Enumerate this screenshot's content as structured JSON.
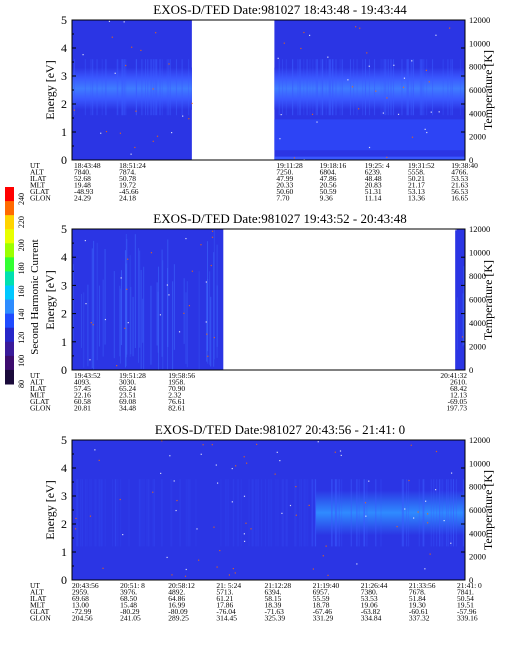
{
  "colors": {
    "background": "#ffffff",
    "spectrogram_base": "#2b35e4",
    "spectrogram_band": "#3f60ff",
    "spectrogram_bright": "#2f8bff",
    "spectrogram_low": "#2c3cf0",
    "noise_white": "#ffffff",
    "noise_orange": "#ff6a00"
  },
  "colorbar": {
    "label": "Second Harmonic Current",
    "ticks": [
      "240",
      "220",
      "200",
      "180",
      "160",
      "140",
      "120",
      "100",
      "80"
    ],
    "colors": [
      "#ff0000",
      "#ff6a00",
      "#ffd400",
      "#e8ff00",
      "#9cff00",
      "#33ff33",
      "#00e0b0",
      "#00c8ff",
      "#2d8cff",
      "#1f4bff",
      "#2626c8",
      "#3a1a9a",
      "#3d0c6e",
      "#1a0a3a"
    ]
  },
  "panels": [
    {
      "title": "EXOS-D/TED   Date:981027   18:43:48 - 19:43:44",
      "ylabel": "Energy [eV]",
      "y2label": "Temperature [K]",
      "yticks": [
        "0",
        "1",
        "2",
        "3",
        "4",
        "5"
      ],
      "y2ticks": [
        "0",
        "2000",
        "4000",
        "6000",
        "8000",
        "10000",
        "12000"
      ],
      "data_segments": [
        [
          0.0,
          0.305
        ],
        [
          0.515,
          1.0
        ]
      ],
      "table_rows": [
        {
          "label": "UT",
          "values": [
            "18:43:48",
            "18:51:24",
            "19:11:28",
            "19:18:16",
            "19:25: 4",
            "19:31:52",
            "19:38:40"
          ]
        },
        {
          "label": "ALT",
          "values": [
            "7840.",
            "7874.",
            "7250.",
            "6804.",
            "6239.",
            "5558.",
            "4766."
          ]
        },
        {
          "label": "ILAT",
          "values": [
            "52.68",
            "50.78",
            "47.99",
            "47.86",
            "48.48",
            "50.21",
            "53.53"
          ]
        },
        {
          "label": "MLT",
          "values": [
            "19.48",
            "19.72",
            "20.33",
            "20.56",
            "20.83",
            "21.17",
            "21.63"
          ]
        },
        {
          "label": "GLAT",
          "values": [
            "-48.93",
            "-45.66",
            "50.60",
            "50.59",
            "51.31",
            "53.13",
            "56.53"
          ]
        },
        {
          "label": "GLON",
          "values": [
            "24.29",
            "24.18",
            "7.70",
            "9.36",
            "11.14",
            "13.36",
            "16.65"
          ]
        }
      ]
    },
    {
      "title": "EXOS-D/TED   Date:981027   19:43:52 - 20:43:48",
      "ylabel": "Energy [eV]",
      "y2label": "Temperature [K]",
      "yticks": [
        "0",
        "1",
        "2",
        "3",
        "4",
        "5"
      ],
      "y2ticks": [
        "0",
        "2000",
        "4000",
        "6000",
        "8000",
        "10000",
        "12000"
      ],
      "data_segments": [
        [
          0.0,
          0.385
        ],
        [
          0.975,
          1.0
        ]
      ],
      "table_rows": [
        {
          "label": "UT",
          "values": [
            "19:43:52",
            "19:51:28",
            "19:58:56",
            "20:41:32"
          ]
        },
        {
          "label": "ALT",
          "values": [
            "4093.",
            "3030.",
            "1958.",
            "2610."
          ]
        },
        {
          "label": "ILAT",
          "values": [
            "57.45",
            "65.24",
            "70.90",
            "68.42"
          ]
        },
        {
          "label": "MLT",
          "values": [
            "22.16",
            "23.51",
            "2.32",
            "12.13"
          ]
        },
        {
          "label": "GLAT",
          "values": [
            "60.58",
            "69.08",
            "76.61",
            "-69.05"
          ]
        },
        {
          "label": "GLON",
          "values": [
            "20.81",
            "34.48",
            "82.61",
            "197.73"
          ]
        }
      ]
    },
    {
      "title": "EXOS-D/TED   Date:981027   20:43:56 - 21:41: 0",
      "ylabel": "Energy [eV]",
      "y2label": "Temperature [K]",
      "yticks": [
        "0",
        "1",
        "2",
        "3",
        "4",
        "5"
      ],
      "y2ticks": [
        "0",
        "2000",
        "4000",
        "6000",
        "8000",
        "10000",
        "12000"
      ],
      "data_segments": [
        [
          0.0,
          1.0
        ]
      ],
      "table_rows": [
        {
          "label": "UT",
          "values": [
            "20:43:56",
            "20:51: 8",
            "20:58:12",
            "21: 5:24",
            "21:12:28",
            "21:19:40",
            "21:26:44",
            "21:33:56",
            "21:41: 0"
          ]
        },
        {
          "label": "ALT",
          "values": [
            "2959.",
            "3976.",
            "4892.",
            "5713.",
            "6394.",
            "6957.",
            "7380.",
            "7678.",
            "7841."
          ]
        },
        {
          "label": "ILAT",
          "values": [
            "69.68",
            "68.50",
            "64.86",
            "61.21",
            "58.15",
            "55.59",
            "53.53",
            "51.84",
            "50.54"
          ]
        },
        {
          "label": "MLT",
          "values": [
            "13.00",
            "15.48",
            "16.99",
            "17.86",
            "18.39",
            "18.78",
            "19.06",
            "19.30",
            "19.51"
          ]
        },
        {
          "label": "GLAT",
          "values": [
            "-72.99",
            "-80.29",
            "-80.09",
            "-76.04",
            "-71.63",
            "-67.46",
            "-63.82",
            "-60.61",
            "-57.96"
          ]
        },
        {
          "label": "GLON",
          "values": [
            "204.56",
            "241.05",
            "289.25",
            "314.45",
            "325.39",
            "331.29",
            "334.84",
            "337.32",
            "339.16"
          ]
        }
      ]
    }
  ],
  "chart_data": [
    {
      "type": "heatmap",
      "title": "EXOS-D/TED   Date:981027   18:43:48 - 19:43:44",
      "ylabel": "Energy [eV]",
      "y2label": "Temperature [K]",
      "ylim": [
        0,
        5
      ],
      "y2lim": [
        0,
        12000
      ],
      "x_ut": [
        "18:43:48",
        "18:51:24",
        "19:11:28",
        "19:18:16",
        "19:25: 4",
        "19:31:52",
        "19:38:40"
      ],
      "data_gap_ut": [
        "18:54",
        "19:10"
      ],
      "dominant_energy_band_eV": [
        1.9,
        3.2
      ]
    },
    {
      "type": "heatmap",
      "title": "EXOS-D/TED   Date:981027   19:43:52 - 20:43:48",
      "ylabel": "Energy [eV]",
      "y2label": "Temperature [K]",
      "ylim": [
        0,
        5
      ],
      "y2lim": [
        0,
        12000
      ],
      "x_ut": [
        "19:43:52",
        "19:51:28",
        "19:58:56",
        "20:41:32"
      ],
      "data_gap_ut": [
        "20:07",
        "20:42"
      ]
    },
    {
      "type": "heatmap",
      "title": "EXOS-D/TED   Date:981027   20:43:56 - 21:41: 0",
      "ylabel": "Energy [eV]",
      "y2label": "Temperature [K]",
      "ylim": [
        0,
        5
      ],
      "y2lim": [
        0,
        12000
      ],
      "x_ut": [
        "20:43:56",
        "20:51: 8",
        "20:58:12",
        "21: 5:24",
        "21:12:28",
        "21:19:40",
        "21:26:44",
        "21:33:56",
        "21:41: 0"
      ],
      "dominant_energy_band_eV": [
        1.5,
        3.2
      ]
    }
  ]
}
